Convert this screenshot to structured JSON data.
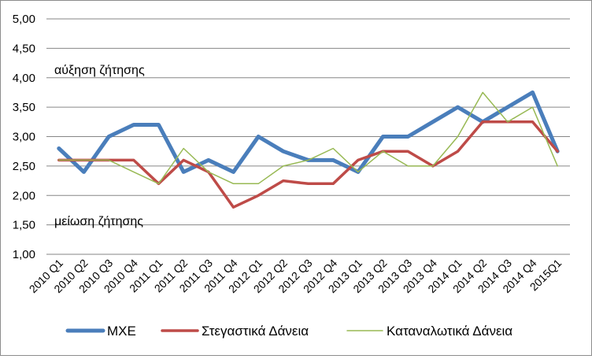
{
  "chart_data": {
    "type": "line",
    "title": "",
    "xlabel": "",
    "ylabel": "",
    "ylim": [
      1.0,
      5.0
    ],
    "y_ticks": [
      "1,00",
      "1,50",
      "2,00",
      "2,50",
      "3,00",
      "3,50",
      "4,00",
      "4,50",
      "5,00"
    ],
    "grid": "horizontal",
    "legend_position": "bottom",
    "categories": [
      "2010 Q1",
      "2010 Q2",
      "2010 Q3",
      "2010 Q4",
      "2011 Q1",
      "2011 Q2",
      "2011 Q3",
      "2011 Q4",
      "2012 Q1",
      "2012 Q2",
      "2012 Q3",
      "2012 Q4",
      "2013 Q1",
      "2013 Q2",
      "2013 Q3",
      "2013 Q4",
      "2014 Q1",
      "2014 Q2",
      "2014 Q3",
      "2014 Q4",
      "2015Q1"
    ],
    "annotations": {
      "upper": "αύξηση ζήτησης",
      "lower": "μείωση ζήτησης"
    },
    "series": [
      {
        "name": "ΜΧΕ",
        "color": "#4a7ebb",
        "values": [
          2.8,
          2.4,
          3.0,
          3.2,
          3.2,
          2.4,
          2.6,
          2.4,
          3.0,
          2.75,
          2.6,
          2.6,
          2.4,
          3.0,
          3.0,
          3.25,
          3.5,
          3.25,
          3.5,
          3.75,
          2.75
        ]
      },
      {
        "name": "Στεγαστικά Δάνεια",
        "color": "#be4b48",
        "values": [
          2.6,
          2.6,
          2.6,
          2.6,
          2.2,
          2.6,
          2.4,
          1.8,
          2.0,
          2.25,
          2.2,
          2.2,
          2.6,
          2.75,
          2.75,
          2.5,
          2.75,
          3.25,
          3.25,
          3.25,
          2.75
        ]
      },
      {
        "name": "Καταναλωτικά Δάνεια",
        "color": "#98b954",
        "values": [
          2.6,
          2.6,
          2.6,
          2.4,
          2.2,
          2.8,
          2.4,
          2.2,
          2.2,
          2.5,
          2.6,
          2.8,
          2.4,
          2.75,
          2.5,
          2.5,
          3.0,
          3.75,
          3.25,
          3.5,
          2.5
        ]
      }
    ]
  }
}
